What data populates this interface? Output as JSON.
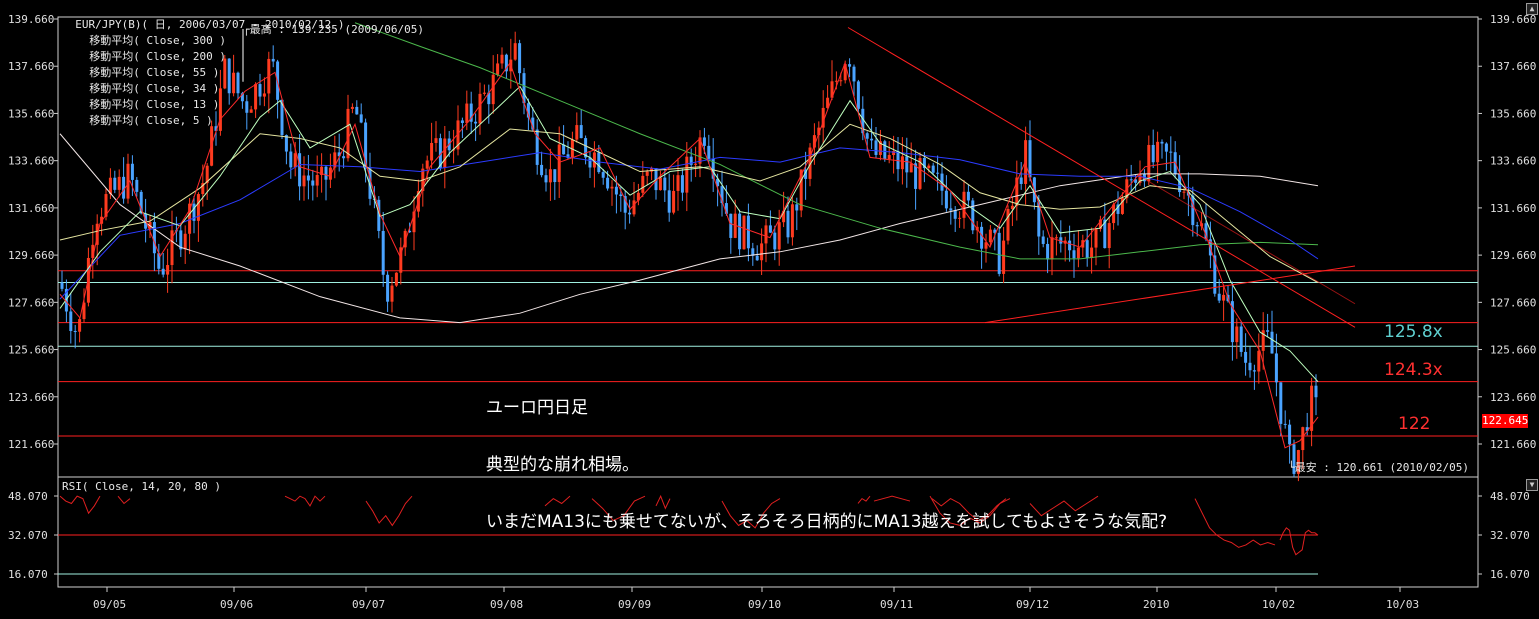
{
  "header": {
    "title": "EUR/JPY(B)( 日, 2006/03/07 - 2010/02/12 )",
    "ma_labels": [
      "移動平均( Close, 300 )",
      "移動平均( Close, 200 )",
      "移動平均( Close, 55 )",
      "移動平均( Close, 34 )",
      "移動平均( Close, 13 )",
      "移動平均( Close, 5 )"
    ]
  },
  "annotation": {
    "line1": "ユーロ円日足",
    "line2": "典型的な崩れ相場。",
    "line3": "いまだMA13にも乗せてないが、そろそろ日柄的にMA13越えを試してもよさそうな気配?"
  },
  "markers": {
    "high": "最高 : 139.235 (2009/06/05)",
    "low": "最安 : 120.661 (2010/02/05)"
  },
  "levels": {
    "l1": "125.8x",
    "l2": "124.3x",
    "l3": "122"
  },
  "current_price": "122.645",
  "rsi_title": "RSI( Close, 14, 20, 80 )",
  "colors": {
    "background": "#000000",
    "bull_candle": "#ff3b1f",
    "bear_candle": "#4aa3ff",
    "ma300": "#f2e6e6",
    "ma200": "#4cb84c",
    "ma55": "#2b3bff",
    "ma34": "#e5e5a0",
    "ma13": "#bfffbf",
    "ma5": "#ff2a2a",
    "level_red": "#ff2020",
    "level_cyan": "#9ff0e0"
  },
  "chart_data": {
    "type": "candlestick",
    "title": "EUR/JPY(B)( 日, 2006/03/07 - 2010/02/12 )",
    "yaxis": {
      "ticks": [
        "139.660",
        "137.660",
        "135.660",
        "133.660",
        "131.660",
        "129.660",
        "127.660",
        "125.660",
        "123.660",
        "121.660"
      ],
      "range": [
        120.0,
        140.0
      ]
    },
    "xaxis": {
      "ticks": [
        "09/05",
        "09/06",
        "09/07",
        "09/08",
        "09/09",
        "09/10",
        "09/11",
        "09/12",
        "2010",
        "10/02",
        "10/03"
      ]
    },
    "horizontal_levels": [
      {
        "value": 129.0,
        "color": "red"
      },
      {
        "value": 128.5,
        "color": "cyan"
      },
      {
        "value": 126.8,
        "color": "red"
      },
      {
        "value": 125.8,
        "color": "cyan",
        "label": "125.8x"
      },
      {
        "value": 124.3,
        "color": "red",
        "label": "124.3x"
      },
      {
        "value": 122.0,
        "color": "red",
        "label": "122"
      }
    ],
    "candles_monthly_approx": [
      {
        "month": "09/05",
        "open": 126.5,
        "high": 134.5,
        "low": 125.6,
        "close": 131.0
      },
      {
        "month": "09/06",
        "open": 131.0,
        "high": 139.2,
        "low": 130.5,
        "close": 134.0
      },
      {
        "month": "09/07",
        "open": 134.0,
        "high": 136.0,
        "low": 127.0,
        "close": 131.5
      },
      {
        "month": "09/08",
        "open": 131.5,
        "high": 138.5,
        "low": 131.0,
        "close": 134.0
      },
      {
        "month": "09/09",
        "open": 134.0,
        "high": 135.0,
        "low": 131.0,
        "close": 133.5
      },
      {
        "month": "09/10",
        "open": 133.5,
        "high": 134.5,
        "low": 129.5,
        "close": 131.5
      },
      {
        "month": "09/11",
        "open": 131.5,
        "high": 138.5,
        "low": 131.0,
        "close": 133.5
      },
      {
        "month": "09/12",
        "open": 133.5,
        "high": 134.5,
        "low": 127.2,
        "close": 130.0
      },
      {
        "month": "2010",
        "open": 130.0,
        "high": 134.0,
        "low": 128.0,
        "close": 130.5
      },
      {
        "month": "10/02",
        "open": 130.5,
        "high": 131.0,
        "low": 120.661,
        "close": 122.645
      }
    ],
    "high": {
      "value": 139.235,
      "date": "2009/06/05"
    },
    "low": {
      "value": 120.661,
      "date": "2010/02/05"
    },
    "rsi": {
      "ticks": [
        "48.070",
        "32.070",
        "16.070"
      ],
      "levels": [
        32.07,
        16.07
      ],
      "segments": [
        [
          48,
          46,
          45,
          48,
          47,
          41,
          44,
          48
        ],
        [
          48,
          45,
          47
        ],
        [
          48,
          47,
          46,
          48,
          47,
          44,
          48,
          46,
          48
        ],
        [
          46,
          42,
          37,
          40,
          36,
          40,
          45,
          48
        ],
        [
          44,
          47,
          45,
          48
        ],
        [
          47,
          43,
          38,
          40,
          46,
          48
        ],
        [
          44,
          48,
          43,
          47
        ],
        [
          46,
          40,
          36,
          38,
          35,
          41,
          45,
          47
        ],
        [
          48,
          41,
          37,
          36,
          39,
          37,
          40,
          45,
          47
        ],
        [
          45,
          47,
          46,
          48
        ],
        [
          46,
          48,
          46
        ],
        [
          47,
          44,
          47,
          45,
          41,
          38,
          40,
          44,
          47
        ],
        [
          45,
          40,
          43,
          46,
          42,
          45,
          48
        ],
        [
          47,
          41,
          35,
          32,
          30,
          29,
          27,
          28,
          30,
          28,
          29,
          28
        ],
        [
          30,
          33,
          35,
          34,
          27,
          24,
          25,
          26,
          33,
          34,
          33,
          33,
          32
        ]
      ]
    }
  }
}
